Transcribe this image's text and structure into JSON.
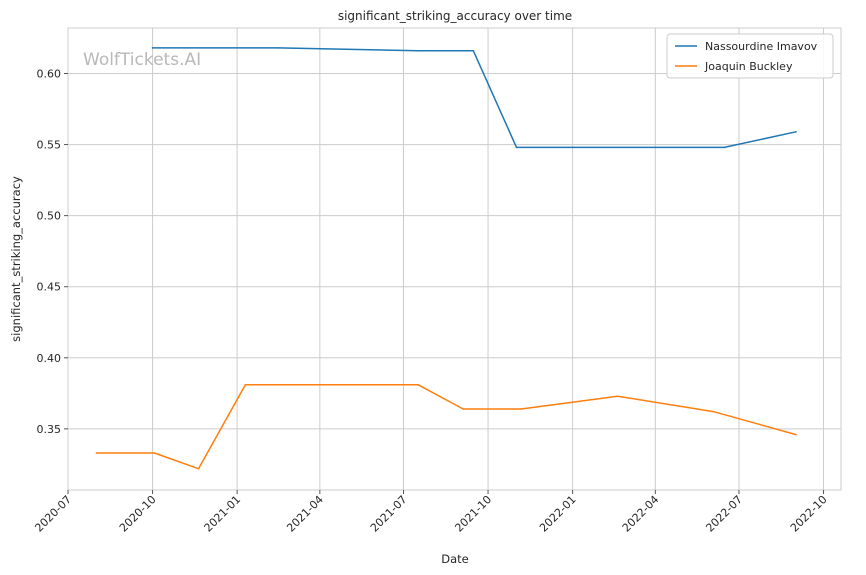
{
  "chart_data": {
    "type": "line",
    "title": "significant_striking_accuracy over time",
    "xlabel": "Date",
    "ylabel": "significant_striking_accuracy",
    "watermark": "WolfTickets.AI",
    "xlim": [
      "2020-07-01",
      "2022-10-20"
    ],
    "ylim": [
      0.307,
      0.632
    ],
    "x_ticks": [
      "2020-07",
      "2020-10",
      "2021-01",
      "2021-04",
      "2021-07",
      "2021-10",
      "2022-01",
      "2022-04",
      "2022-07",
      "2022-10"
    ],
    "y_ticks": [
      0.35,
      0.4,
      0.45,
      0.5,
      0.55,
      0.6
    ],
    "grid": true,
    "legend_position": "top-right",
    "series": [
      {
        "name": "Nassourdine Imavov",
        "color": "#1f77b4",
        "points": [
          {
            "x": "2020-10-01",
            "y": 0.618
          },
          {
            "x": "2021-02-15",
            "y": 0.618
          },
          {
            "x": "2021-07-17",
            "y": 0.616
          },
          {
            "x": "2021-09-15",
            "y": 0.616
          },
          {
            "x": "2021-11-01",
            "y": 0.548
          },
          {
            "x": "2022-06-15",
            "y": 0.548
          },
          {
            "x": "2022-09-01",
            "y": 0.559
          }
        ]
      },
      {
        "name": "Joaquin Buckley",
        "color": "#ff7f0e",
        "points": [
          {
            "x": "2020-08-01",
            "y": 0.333
          },
          {
            "x": "2020-10-03",
            "y": 0.333
          },
          {
            "x": "2020-11-20",
            "y": 0.322
          },
          {
            "x": "2021-01-10",
            "y": 0.381
          },
          {
            "x": "2021-07-17",
            "y": 0.381
          },
          {
            "x": "2021-09-04",
            "y": 0.364
          },
          {
            "x": "2021-11-06",
            "y": 0.364
          },
          {
            "x": "2022-02-19",
            "y": 0.373
          },
          {
            "x": "2022-06-04",
            "y": 0.362
          },
          {
            "x": "2022-09-01",
            "y": 0.346
          }
        ]
      }
    ]
  }
}
